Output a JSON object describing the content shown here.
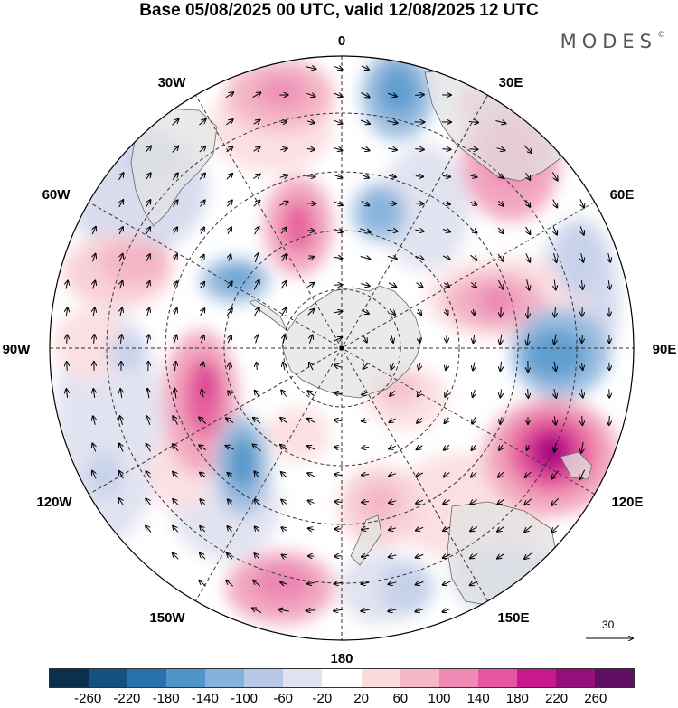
{
  "title": "Base 05/08/2025 00 UTC, valid 12/08/2025 12 UTC",
  "brand": "MODES",
  "brand_mark": "©",
  "longitude_labels": {
    "n0": "0",
    "e30": "30E",
    "e60": "60E",
    "e90": "90E",
    "e120": "120E",
    "e150": "150E",
    "s180": "180",
    "w150": "150W",
    "w120": "120W",
    "w90": "90W",
    "w60": "60W",
    "w30": "30W"
  },
  "reference_vector_label": "30",
  "colorbar": {
    "colors": [
      "#0b2f4f",
      "#15507f",
      "#2a72ac",
      "#4f95c8",
      "#84b2dc",
      "#b6c8e6",
      "#e0e2f1",
      "#ffffff",
      "#fbdcdc",
      "#f6b7c8",
      "#f08ab4",
      "#e656a2",
      "#c7198d",
      "#950f7a",
      "#5e0f63"
    ],
    "tick_labels": [
      "-260",
      "-220",
      "-180",
      "-140",
      "-100",
      "-60",
      "-20",
      "20",
      "60",
      "100",
      "140",
      "180",
      "220",
      "260"
    ]
  },
  "colors": {
    "land": "#e3e3e3",
    "coast": "#666666",
    "grid": "#333333"
  }
}
